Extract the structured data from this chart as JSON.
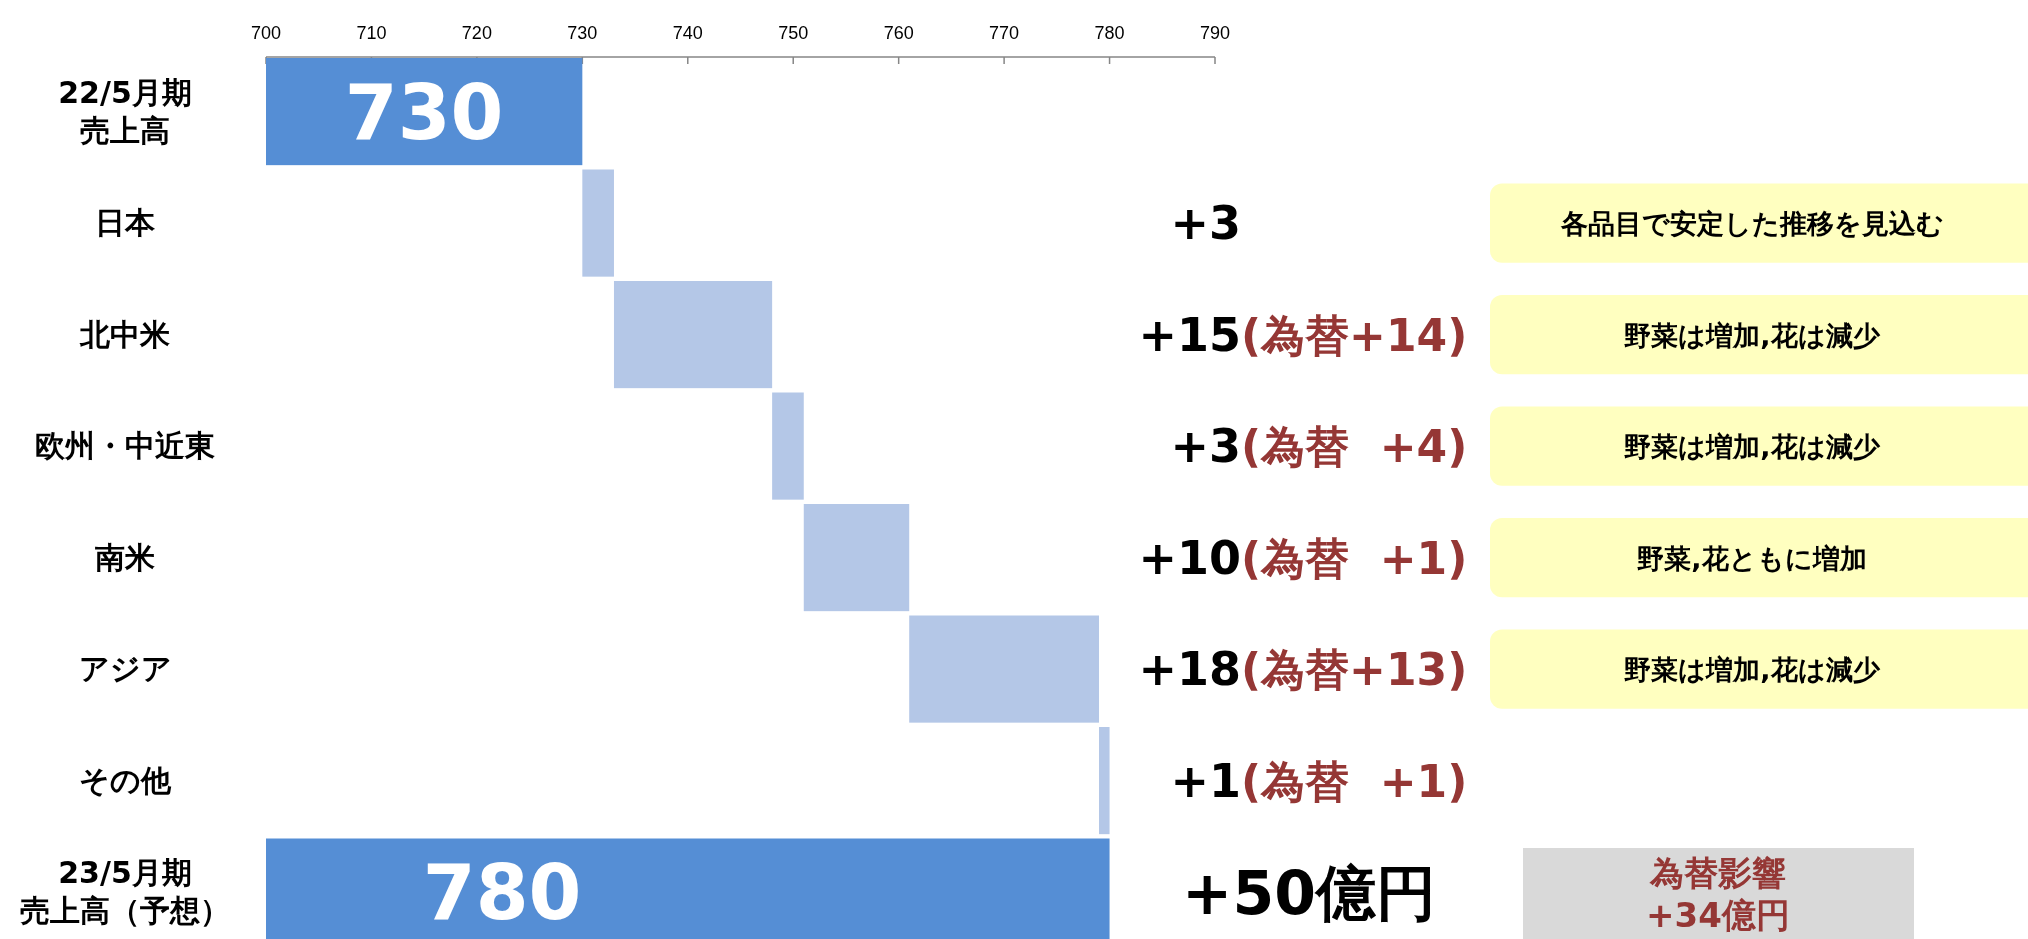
{
  "chart_data": {
    "type": "bar",
    "orientation": "horizontal",
    "categories": [
      "22/5月期売上高",
      "日本",
      "北中米",
      "欧州・中近東",
      "南米",
      "アジア",
      "その他",
      "23/5月期売上高（予想）"
    ],
    "values": [
      730,
      3,
      15,
      3,
      10,
      18,
      1,
      780
    ],
    "base": [
      null,
      730,
      733,
      748,
      751,
      761,
      779,
      null
    ],
    "colors": [
      "#558ed5",
      "#b4c7e7",
      "#b4c7e7",
      "#b4c7e7",
      "#b4c7e7",
      "#b4c7e7",
      "#b4c7e7",
      "#558ed5"
    ],
    "value_labels": [
      "730",
      null,
      null,
      null,
      null,
      null,
      null,
      "780"
    ],
    "xlim": [
      700,
      790
    ],
    "xticks": [
      700,
      710,
      720,
      730,
      740,
      750,
      760,
      770,
      780,
      790
    ],
    "annotations": [
      "+3",
      "+15(為替+14)",
      "+3(為替  +4)",
      "+10(為替  +1)",
      "+18(為替+13)",
      "+1(為替  +1)",
      "+50億円",
      "各品目で安定した推移を見込む",
      "野菜は増加,花は減少",
      "野菜は増加,花は減少",
      "野菜,花ともに増加",
      "野菜は増加,花は減少",
      "為替影響\n+34億円"
    ]
  }
}
